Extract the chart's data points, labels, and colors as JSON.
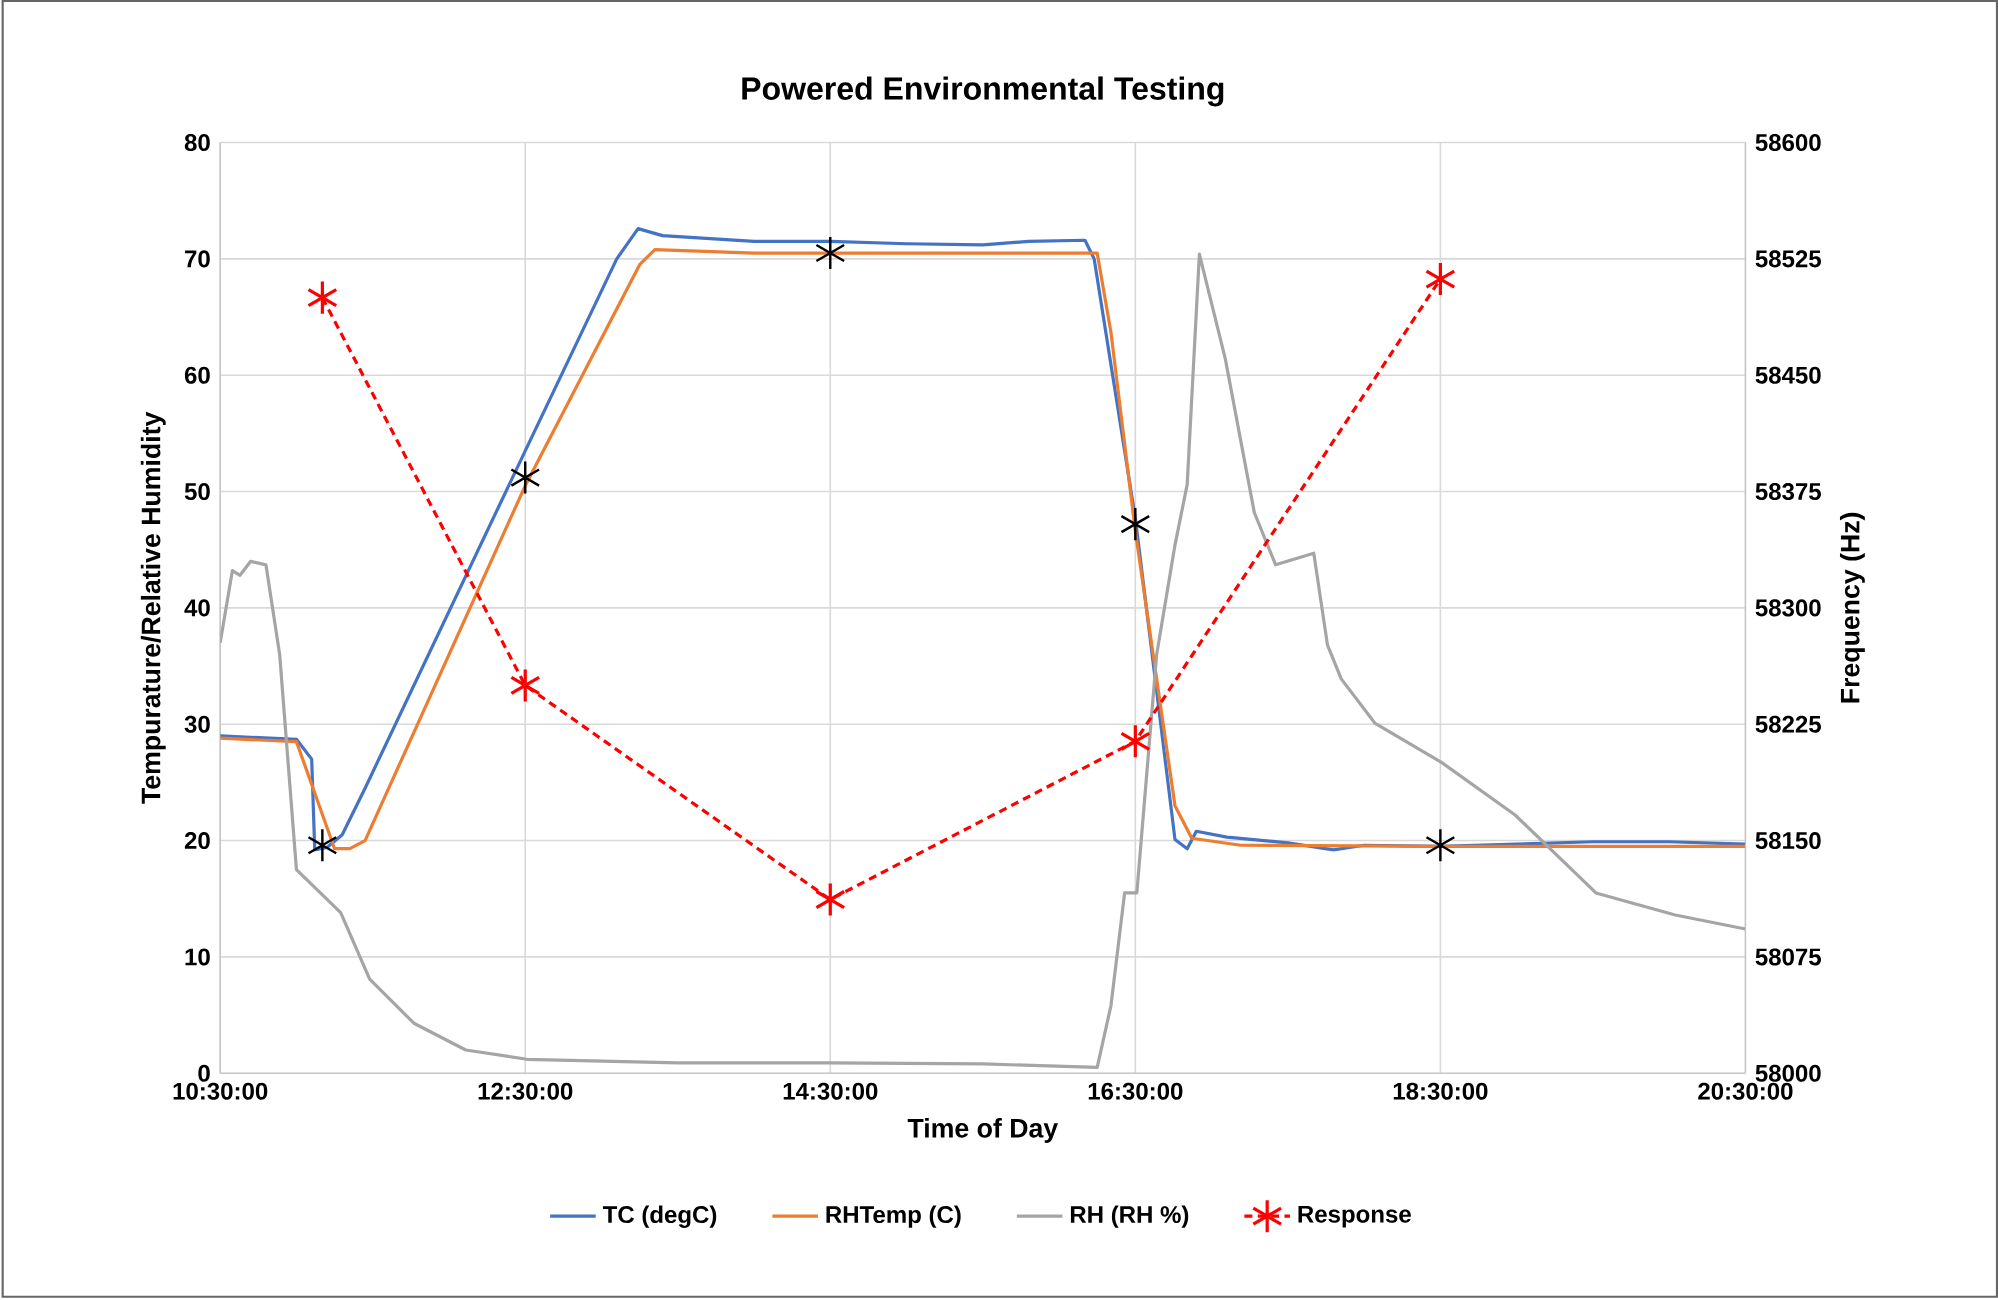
{
  "chart_data": {
    "type": "line",
    "title": "Powered Environmental Testing",
    "xlabel": "Time of Day",
    "ylabel": "Tempurature/Relative Humidity",
    "y2label": "Frequency (Hz)",
    "xlim": [
      10.5,
      20.5
    ],
    "xticks": [
      {
        "value": 10.5,
        "label": "10:30:00"
      },
      {
        "value": 12.5,
        "label": "12:30:00"
      },
      {
        "value": 14.5,
        "label": "14:30:00"
      },
      {
        "value": 16.5,
        "label": "16:30:00"
      },
      {
        "value": 18.5,
        "label": "18:30:00"
      },
      {
        "value": 20.5,
        "label": "20:30:00"
      }
    ],
    "ylim": [
      0,
      80
    ],
    "yticks": [
      0,
      10,
      20,
      30,
      40,
      50,
      60,
      70,
      80
    ],
    "y2lim": [
      58000,
      58600
    ],
    "y2ticks": [
      58000,
      58075,
      58150,
      58225,
      58300,
      58375,
      58450,
      58525,
      58600
    ],
    "grid": true,
    "legend": "bottom",
    "series": [
      {
        "name": "TC (degC)",
        "color": "#4472c4",
        "x": [
          10.5,
          11.0,
          11.1,
          11.12,
          11.2,
          11.3,
          11.45,
          12.5,
          13.1,
          13.24,
          13.4,
          14.0,
          14.5,
          15.0,
          15.5,
          15.8,
          16.17,
          16.23,
          16.5,
          16.76,
          16.84,
          16.9,
          17.1,
          17.5,
          17.8,
          18.0,
          18.5,
          19.0,
          19.5,
          20.0,
          20.5
        ],
        "values": [
          29,
          28.7,
          27,
          19.2,
          19.4,
          20.5,
          24.5,
          53.5,
          70,
          72.6,
          72,
          71.5,
          71.5,
          71.3,
          71.2,
          71.5,
          71.6,
          70,
          47.7,
          20.1,
          19.3,
          20.8,
          20.3,
          19.8,
          19.2,
          19.6,
          19.5,
          19.7,
          19.9,
          19.9,
          19.7
        ]
      },
      {
        "name": "RHTemp (C)",
        "color": "#ed7d31",
        "x": [
          10.5,
          11.0,
          11.25,
          11.35,
          11.45,
          12.5,
          13.25,
          13.35,
          14.0,
          15.0,
          16.25,
          16.34,
          16.5,
          16.76,
          16.87,
          17.19,
          18.5,
          20.5
        ],
        "values": [
          28.8,
          28.5,
          19.3,
          19.3,
          20,
          50.5,
          69.5,
          70.8,
          70.5,
          70.5,
          70.5,
          63.7,
          46.6,
          23,
          20.2,
          19.6,
          19.5,
          19.5
        ]
      },
      {
        "name": "RH (RH %)",
        "color": "#a5a5a5",
        "x": [
          10.5,
          10.58,
          10.63,
          10.7,
          10.8,
          10.89,
          11.0,
          11.29,
          11.48,
          11.77,
          12.11,
          12.51,
          13.5,
          14.5,
          15.5,
          16.25,
          16.34,
          16.43,
          16.51,
          16.64,
          16.76,
          16.84,
          16.92,
          17.09,
          17.28,
          17.42,
          17.67,
          17.76,
          17.85,
          18.07,
          18.51,
          18.99,
          19.52,
          20.04,
          20.5
        ],
        "values": [
          37,
          43.2,
          42.8,
          44,
          43.7,
          36,
          17.5,
          13.8,
          8.1,
          4.3,
          2,
          1.2,
          0.9,
          0.9,
          0.8,
          0.5,
          5.8,
          15.5,
          15.5,
          36,
          45.4,
          50.6,
          70.4,
          61.4,
          48.2,
          43.7,
          44.7,
          36.8,
          33.9,
          30.1,
          26.7,
          22.2,
          15.5,
          13.6,
          12.4
        ]
      },
      {
        "color": "#000000",
        "type": "scatter",
        "marker": "cross",
        "x": [
          11.17,
          12.5,
          14.5,
          16.5,
          18.5
        ],
        "values": [
          19.6,
          51.2,
          70.5,
          47.2,
          19.6
        ]
      },
      {
        "name": "Response",
        "color": "#ff0000",
        "axis": "y2",
        "marker": "cross",
        "line_style": "dashed",
        "x": [
          11.17,
          12.5,
          14.5,
          16.5,
          18.5
        ],
        "values": [
          58500,
          58250,
          58112,
          58214,
          58512
        ]
      }
    ]
  }
}
